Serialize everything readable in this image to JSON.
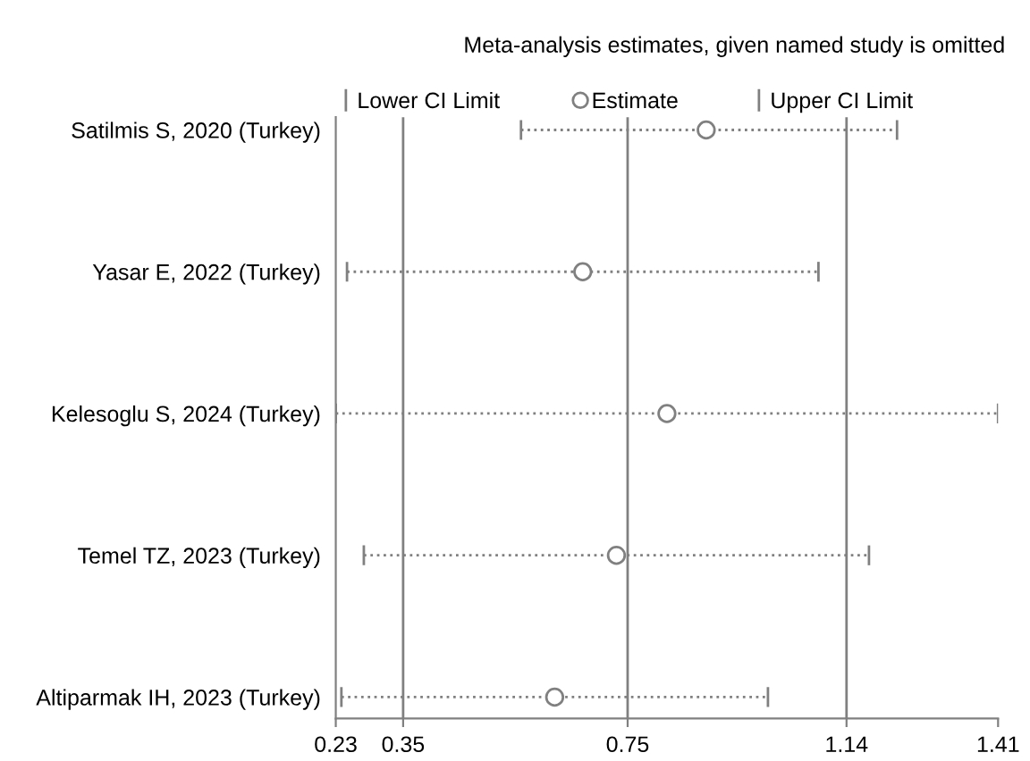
{
  "chart_data": {
    "type": "scatter",
    "orientation": "horizontal",
    "title": "Meta-analysis estimates, given named study is omitted",
    "categories": [
      "Satilmis S, 2020 (Turkey)",
      "Yasar E, 2022 (Turkey)",
      "Kelesoglu S, 2024 (Turkey)",
      "Temel TZ, 2023 (Turkey)",
      "Altiparmak IH, 2023 (Turkey)"
    ],
    "series": [
      {
        "name": "Estimate",
        "color": "#808080",
        "marker": "circle",
        "line_style": "dotted",
        "values": [
          0.89,
          0.67,
          0.82,
          0.73,
          0.62
        ],
        "errors": [
          [
            0.56,
            1.23
          ],
          [
            0.25,
            1.09
          ],
          [
            0.23,
            1.41
          ],
          [
            0.28,
            1.18
          ],
          [
            0.24,
            1.0
          ]
        ]
      }
    ],
    "annotations": [
      "Lower CI Limit",
      "Upper CI Limit"
    ],
    "xlim": [
      0.23,
      1.41
    ],
    "xticks": [
      0.23,
      0.35,
      0.75,
      1.14,
      1.41
    ],
    "ref_lines": [
      {
        "axis": "x",
        "value": 0.35,
        "color": "#808080"
      },
      {
        "axis": "x",
        "value": 0.75,
        "color": "#808080"
      },
      {
        "axis": "x",
        "value": 1.14,
        "color": "#808080"
      }
    ],
    "grid": false,
    "legend": "top"
  }
}
